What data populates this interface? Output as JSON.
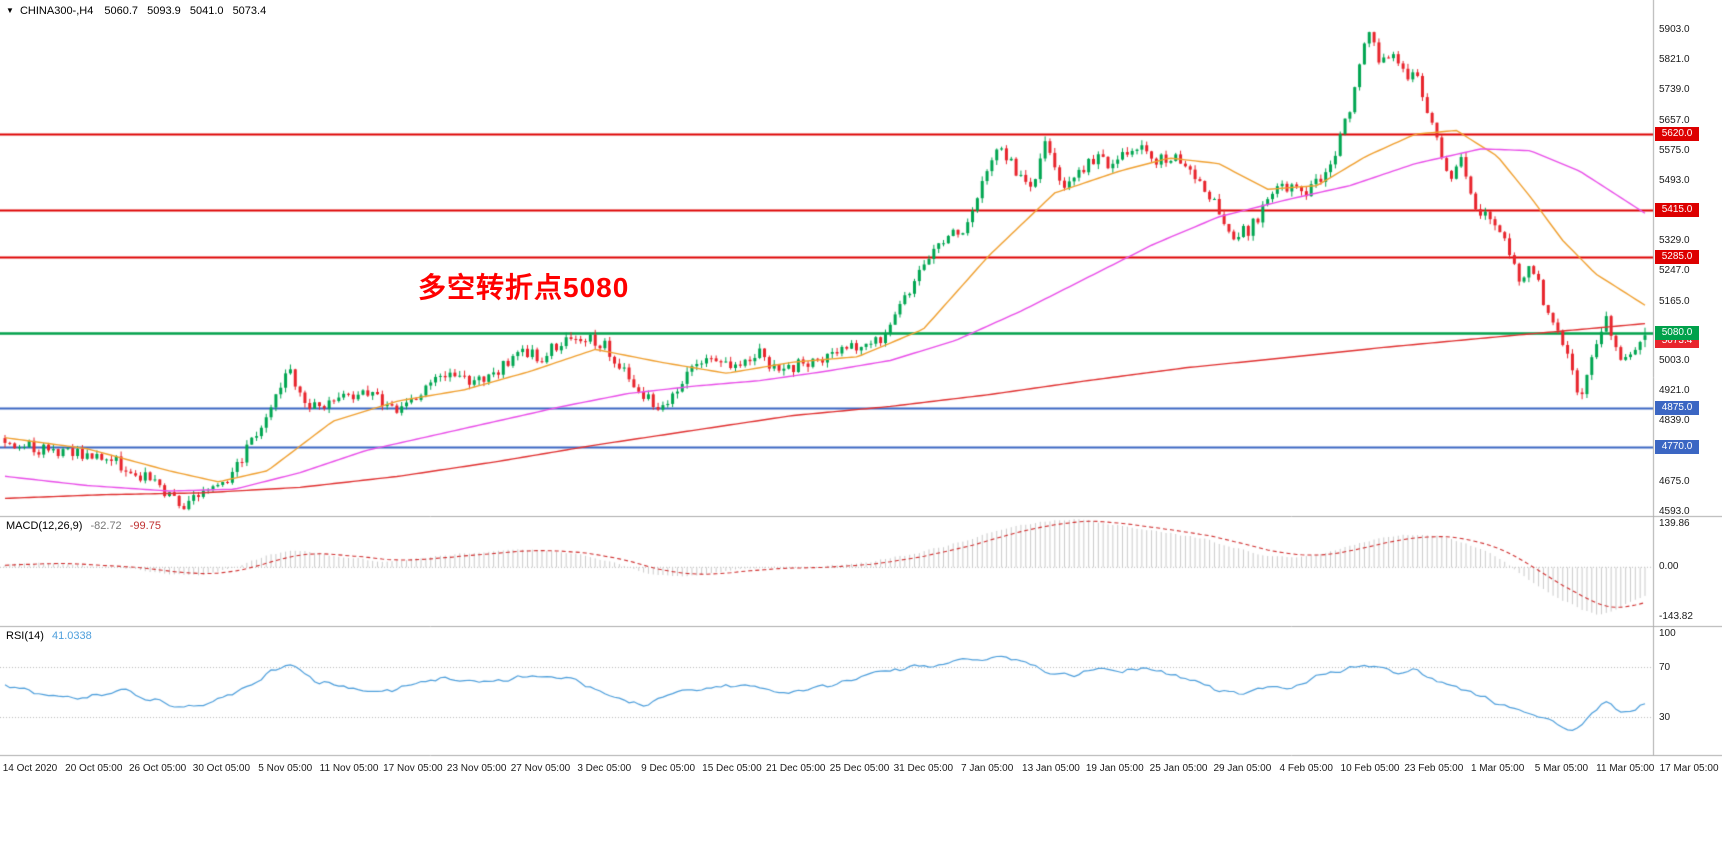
{
  "header": {
    "collapse_icon": "▼",
    "symbol": "CHINA300-,H4",
    "open": "5060.7",
    "high": "5093.9",
    "low": "5041.0",
    "close": "5073.4"
  },
  "annotation": {
    "text": "多空转折点5080",
    "color": "#FF0000"
  },
  "indicators": {
    "macd": {
      "label": "MACD(12,26,9)",
      "value_text": "-82.72",
      "signal_text": "-99.75"
    },
    "rsi": {
      "label": "RSI(14)",
      "value_text": "41.0338"
    }
  },
  "chart_data": {
    "type": "candlestick",
    "symbol": "CHINA300-",
    "timeframe": "H4",
    "current": {
      "open": 5060.7,
      "high": 5093.9,
      "low": 5041.0,
      "close": 5073.4
    },
    "candle_count": 340,
    "seed": 20210317,
    "colors": {
      "up": "#00A651",
      "down": "#E8242C",
      "ma_fast": "#F0A030",
      "ma_mid": "#E94FE9",
      "ma_slow": "#E03131",
      "resistance": "#DD0000",
      "pivot": "#00A14B",
      "support": "#3B66C3",
      "macd_hist": "#CBCBCB",
      "macd_signal": "#D03030",
      "rsi_line": "#4E9FDC",
      "grid": "#ADADAD"
    },
    "price_axis": {
      "top_value": 5903.0,
      "bottom_value": 4593.0,
      "ticks": [
        5903,
        5821,
        5739,
        5657,
        5575,
        5493,
        5411,
        5329,
        5247,
        5165,
        5083,
        5003,
        4921,
        4839,
        4757,
        4675,
        4593
      ]
    },
    "levels": [
      {
        "value": 5620.0,
        "label": "5620.0",
        "role": "resistance"
      },
      {
        "value": 5415.0,
        "label": "5415.0",
        "role": "resistance"
      },
      {
        "value": 5285.0,
        "label": "5285.0",
        "role": "resistance"
      },
      {
        "value": 5080.0,
        "label": "5080.0",
        "role": "pivot"
      },
      {
        "value": 4875.0,
        "label": "4875.0",
        "role": "support"
      },
      {
        "value": 4770.0,
        "label": "4770.0",
        "role": "support"
      }
    ],
    "current_tag": {
      "value": 5073.4,
      "label": "5073.4"
    },
    "price_path_keyframes": [
      [
        0,
        4790
      ],
      [
        0.024,
        4760
      ],
      [
        0.052,
        4745
      ],
      [
        0.059,
        4752
      ],
      [
        0.089,
        4680
      ],
      [
        0.101,
        4632
      ],
      [
        0.11,
        4615
      ],
      [
        0.122,
        4655
      ],
      [
        0.132,
        4662
      ],
      [
        0.15,
        4780
      ],
      [
        0.166,
        4930
      ],
      [
        0.174,
        4975
      ],
      [
        0.187,
        4870
      ],
      [
        0.201,
        4905
      ],
      [
        0.222,
        4915
      ],
      [
        0.235,
        4865
      ],
      [
        0.25,
        4890
      ],
      [
        0.272,
        4985
      ],
      [
        0.284,
        4940
      ],
      [
        0.296,
        4960
      ],
      [
        0.315,
        5030
      ],
      [
        0.327,
        5010
      ],
      [
        0.34,
        5060
      ],
      [
        0.352,
        5070
      ],
      [
        0.366,
        5045
      ],
      [
        0.388,
        4920
      ],
      [
        0.397,
        4880
      ],
      [
        0.405,
        4905
      ],
      [
        0.424,
        5000
      ],
      [
        0.444,
        4980
      ],
      [
        0.461,
        5030
      ],
      [
        0.473,
        4960
      ],
      [
        0.483,
        4995
      ],
      [
        0.502,
        5020
      ],
      [
        0.521,
        5045
      ],
      [
        0.534,
        5060
      ],
      [
        0.547,
        5160
      ],
      [
        0.56,
        5260
      ],
      [
        0.577,
        5370
      ],
      [
        0.583,
        5340
      ],
      [
        0.599,
        5530
      ],
      [
        0.607,
        5595
      ],
      [
        0.616,
        5520
      ],
      [
        0.625,
        5455
      ],
      [
        0.634,
        5600
      ],
      [
        0.638,
        5560
      ],
      [
        0.647,
        5465
      ],
      [
        0.662,
        5555
      ],
      [
        0.677,
        5540
      ],
      [
        0.692,
        5585
      ],
      [
        0.702,
        5555
      ],
      [
        0.716,
        5560
      ],
      [
        0.731,
        5480
      ],
      [
        0.75,
        5345
      ],
      [
        0.759,
        5360
      ],
      [
        0.778,
        5480
      ],
      [
        0.793,
        5460
      ],
      [
        0.808,
        5520
      ],
      [
        0.821,
        5700
      ],
      [
        0.831,
        5890
      ],
      [
        0.838,
        5830
      ],
      [
        0.848,
        5855
      ],
      [
        0.854,
        5755
      ],
      [
        0.86,
        5800
      ],
      [
        0.866,
        5705
      ],
      [
        0.871,
        5625
      ],
      [
        0.881,
        5505
      ],
      [
        0.887,
        5560
      ],
      [
        0.893,
        5455
      ],
      [
        0.905,
        5385
      ],
      [
        0.918,
        5300
      ],
      [
        0.924,
        5205
      ],
      [
        0.93,
        5280
      ],
      [
        0.939,
        5150
      ],
      [
        0.949,
        5060
      ],
      [
        0.957,
        4955
      ],
      [
        0.96,
        4905
      ],
      [
        0.97,
        5050
      ],
      [
        0.976,
        5115
      ],
      [
        0.982,
        5050
      ],
      [
        0.986,
        5000
      ],
      [
        0.991,
        5015
      ],
      [
        0.996,
        5060
      ],
      [
        1,
        5073
      ]
    ],
    "ma_lines": [
      {
        "name": "ma-fast-orange",
        "color_key": "ma_fast",
        "keyframes": [
          [
            0,
            4795
          ],
          [
            0.05,
            4765
          ],
          [
            0.1,
            4705
          ],
          [
            0.13,
            4675
          ],
          [
            0.16,
            4705
          ],
          [
            0.2,
            4840
          ],
          [
            0.24,
            4895
          ],
          [
            0.28,
            4925
          ],
          [
            0.32,
            4975
          ],
          [
            0.36,
            5035
          ],
          [
            0.4,
            5000
          ],
          [
            0.44,
            4970
          ],
          [
            0.48,
            5000
          ],
          [
            0.52,
            5015
          ],
          [
            0.56,
            5090
          ],
          [
            0.6,
            5290
          ],
          [
            0.64,
            5460
          ],
          [
            0.68,
            5520
          ],
          [
            0.71,
            5555
          ],
          [
            0.74,
            5540
          ],
          [
            0.77,
            5470
          ],
          [
            0.8,
            5480
          ],
          [
            0.83,
            5560
          ],
          [
            0.86,
            5620
          ],
          [
            0.885,
            5630
          ],
          [
            0.91,
            5560
          ],
          [
            0.93,
            5450
          ],
          [
            0.95,
            5330
          ],
          [
            0.97,
            5240
          ],
          [
            1,
            5155
          ]
        ]
      },
      {
        "name": "ma-mid-magenta",
        "color_key": "ma_mid",
        "keyframes": [
          [
            0,
            4690
          ],
          [
            0.05,
            4665
          ],
          [
            0.1,
            4650
          ],
          [
            0.14,
            4655
          ],
          [
            0.18,
            4700
          ],
          [
            0.22,
            4760
          ],
          [
            0.26,
            4800
          ],
          [
            0.3,
            4840
          ],
          [
            0.34,
            4880
          ],
          [
            0.38,
            4915
          ],
          [
            0.42,
            4935
          ],
          [
            0.46,
            4950
          ],
          [
            0.5,
            4975
          ],
          [
            0.54,
            5005
          ],
          [
            0.58,
            5060
          ],
          [
            0.62,
            5140
          ],
          [
            0.66,
            5230
          ],
          [
            0.7,
            5320
          ],
          [
            0.74,
            5395
          ],
          [
            0.78,
            5440
          ],
          [
            0.82,
            5480
          ],
          [
            0.86,
            5540
          ],
          [
            0.9,
            5580
          ],
          [
            0.93,
            5575
          ],
          [
            0.96,
            5520
          ],
          [
            1,
            5405
          ]
        ]
      },
      {
        "name": "ma-slow-red",
        "color_key": "ma_slow",
        "keyframes": [
          [
            0,
            4630
          ],
          [
            0.06,
            4640
          ],
          [
            0.12,
            4645
          ],
          [
            0.18,
            4660
          ],
          [
            0.24,
            4690
          ],
          [
            0.3,
            4730
          ],
          [
            0.36,
            4775
          ],
          [
            0.42,
            4815
          ],
          [
            0.48,
            4855
          ],
          [
            0.54,
            4880
          ],
          [
            0.6,
            4912
          ],
          [
            0.66,
            4950
          ],
          [
            0.72,
            4985
          ],
          [
            0.78,
            5012
          ],
          [
            0.84,
            5040
          ],
          [
            0.9,
            5065
          ],
          [
            0.95,
            5085
          ],
          [
            1,
            5105
          ]
        ]
      }
    ],
    "macd": {
      "value": -82.72,
      "signal": -99.75,
      "axis_ticks": [
        {
          "value": 139.86,
          "label": "139.86"
        },
        {
          "value": 0,
          "label": "0.00"
        },
        {
          "value": -143.82,
          "label": "-143.82"
        }
      ],
      "keyframes": [
        [
          0,
          8
        ],
        [
          0.02,
          14
        ],
        [
          0.05,
          6
        ],
        [
          0.08,
          -6
        ],
        [
          0.1,
          -18
        ],
        [
          0.12,
          -22
        ],
        [
          0.14,
          0
        ],
        [
          0.16,
          35
        ],
        [
          0.175,
          48
        ],
        [
          0.19,
          42
        ],
        [
          0.21,
          28
        ],
        [
          0.23,
          18
        ],
        [
          0.25,
          22
        ],
        [
          0.27,
          35
        ],
        [
          0.3,
          48
        ],
        [
          0.33,
          50
        ],
        [
          0.35,
          38
        ],
        [
          0.37,
          15
        ],
        [
          0.39,
          -15
        ],
        [
          0.41,
          -28
        ],
        [
          0.43,
          -18
        ],
        [
          0.45,
          -5
        ],
        [
          0.47,
          2
        ],
        [
          0.49,
          -2
        ],
        [
          0.51,
          8
        ],
        [
          0.53,
          18
        ],
        [
          0.56,
          45
        ],
        [
          0.58,
          70
        ],
        [
          0.6,
          100
        ],
        [
          0.62,
          122
        ],
        [
          0.64,
          135
        ],
        [
          0.655,
          138
        ],
        [
          0.67,
          128
        ],
        [
          0.69,
          112
        ],
        [
          0.71,
          98
        ],
        [
          0.73,
          85
        ],
        [
          0.75,
          55
        ],
        [
          0.77,
          32
        ],
        [
          0.79,
          28
        ],
        [
          0.81,
          45
        ],
        [
          0.83,
          75
        ],
        [
          0.85,
          92
        ],
        [
          0.865,
          95
        ],
        [
          0.88,
          85
        ],
        [
          0.9,
          55
        ],
        [
          0.915,
          15
        ],
        [
          0.93,
          -40
        ],
        [
          0.945,
          -85
        ],
        [
          0.96,
          -120
        ],
        [
          0.97,
          -138
        ],
        [
          0.98,
          -128
        ],
        [
          0.99,
          -105
        ],
        [
          1,
          -82.72
        ]
      ]
    },
    "rsi": {
      "value": 41.0338,
      "axis_ticks": [
        {
          "value": 100,
          "label": "100"
        },
        {
          "value": 70,
          "label": "70"
        },
        {
          "value": 30,
          "label": "30"
        }
      ],
      "guide_levels": [
        70,
        30
      ],
      "keyframes": [
        [
          0,
          55
        ],
        [
          0.02,
          50
        ],
        [
          0.05,
          45
        ],
        [
          0.07,
          52
        ],
        [
          0.09,
          44
        ],
        [
          0.11,
          38
        ],
        [
          0.13,
          44
        ],
        [
          0.15,
          55
        ],
        [
          0.165,
          70
        ],
        [
          0.175,
          75
        ],
        [
          0.19,
          58
        ],
        [
          0.21,
          54
        ],
        [
          0.23,
          50
        ],
        [
          0.25,
          57
        ],
        [
          0.27,
          63
        ],
        [
          0.29,
          57
        ],
        [
          0.31,
          62
        ],
        [
          0.33,
          64
        ],
        [
          0.35,
          58
        ],
        [
          0.37,
          46
        ],
        [
          0.39,
          39
        ],
        [
          0.41,
          50
        ],
        [
          0.43,
          54
        ],
        [
          0.45,
          57
        ],
        [
          0.47,
          50
        ],
        [
          0.49,
          53
        ],
        [
          0.51,
          58
        ],
        [
          0.53,
          65
        ],
        [
          0.55,
          70
        ],
        [
          0.57,
          73
        ],
        [
          0.59,
          77
        ],
        [
          0.605,
          80
        ],
        [
          0.62,
          75
        ],
        [
          0.635,
          68
        ],
        [
          0.65,
          63
        ],
        [
          0.665,
          70
        ],
        [
          0.68,
          66
        ],
        [
          0.695,
          69
        ],
        [
          0.71,
          65
        ],
        [
          0.725,
          60
        ],
        [
          0.74,
          52
        ],
        [
          0.755,
          48
        ],
        [
          0.77,
          56
        ],
        [
          0.785,
          54
        ],
        [
          0.8,
          62
        ],
        [
          0.815,
          68
        ],
        [
          0.83,
          73
        ],
        [
          0.845,
          66
        ],
        [
          0.86,
          68
        ],
        [
          0.875,
          58
        ],
        [
          0.89,
          52
        ],
        [
          0.905,
          44
        ],
        [
          0.92,
          38
        ],
        [
          0.935,
          30
        ],
        [
          0.95,
          24
        ],
        [
          0.958,
          20
        ],
        [
          0.968,
          34
        ],
        [
          0.976,
          42
        ],
        [
          0.984,
          36
        ],
        [
          0.992,
          34
        ],
        [
          1,
          41.03
        ]
      ]
    },
    "time_axis": [
      "14 Oct 2020",
      "20 Oct 05:00",
      "26 Oct 05:00",
      "30 Oct 05:00",
      "5 Nov 05:00",
      "11 Nov 05:00",
      "17 Nov 05:00",
      "23 Nov 05:00",
      "27 Nov 05:00",
      "3 Dec 05:00",
      "9 Dec 05:00",
      "15 Dec 05:00",
      "21 Dec 05:00",
      "25 Dec 05:00",
      "31 Dec 05:00",
      "7 Jan 05:00",
      "13 Jan 05:00",
      "19 Jan 05:00",
      "25 Jan 05:00",
      "29 Jan 05:00",
      "4 Feb 05:00",
      "10 Feb 05:00",
      "23 Feb 05:00",
      "1 Mar 05:00",
      "5 Mar 05:00",
      "11 Mar 05:00",
      "17 Mar 05:00"
    ]
  }
}
